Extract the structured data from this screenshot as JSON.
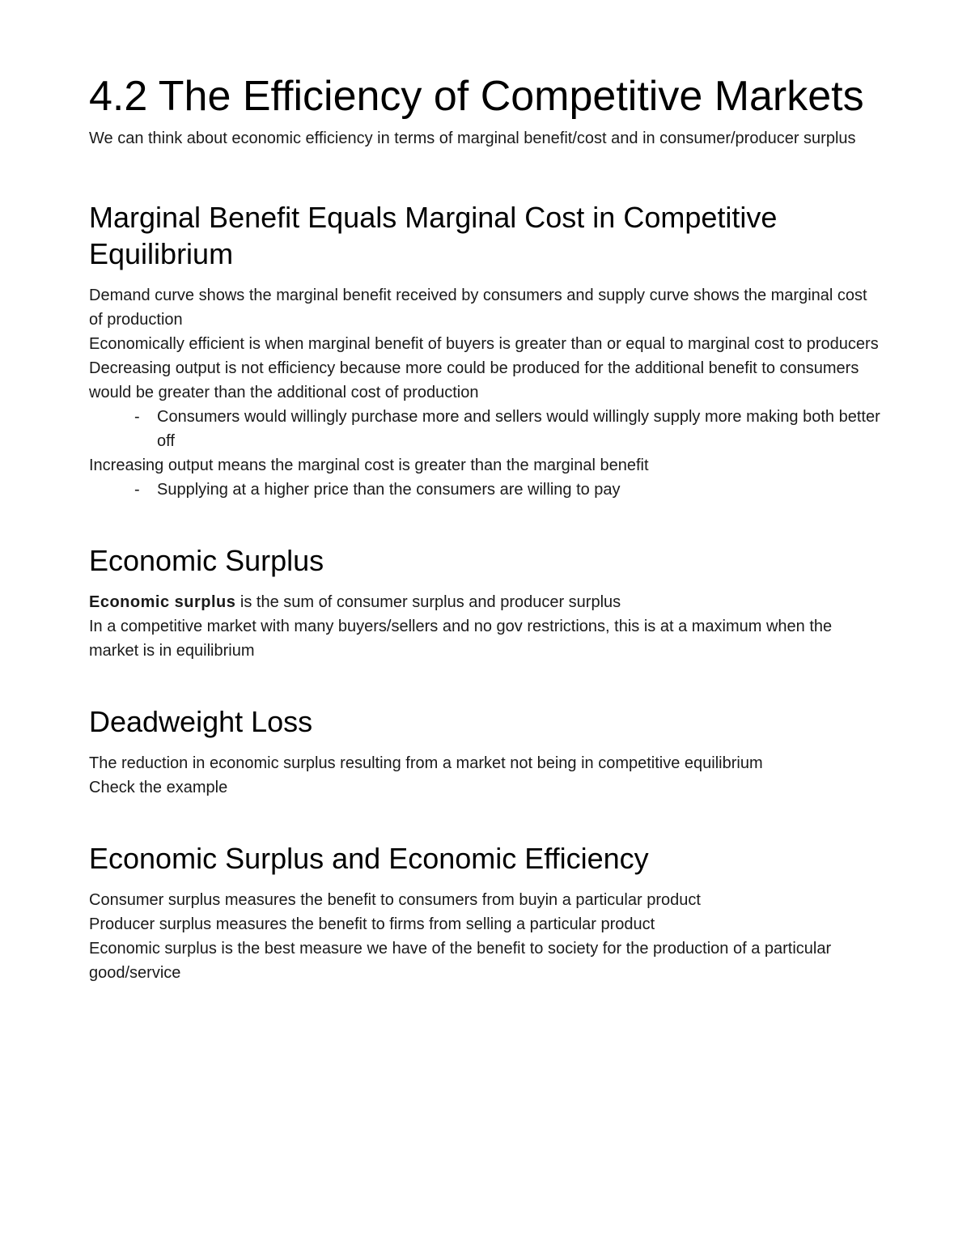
{
  "title": "4.2 The Efficiency of Competitive Markets",
  "intro": "We can think about economic efficiency in terms of marginal benefit/cost and in consumer/producer surplus",
  "sections": {
    "s1": {
      "heading": "Marginal Benefit Equals Marginal Cost in Competitive Equilibrium",
      "p1": "Demand curve shows the marginal benefit received by consumers and supply curve shows the marginal cost of production",
      "p2": "Economically efficient is when marginal benefit of buyers is greater than or equal to marginal cost to producers",
      "p3": "Decreasing output is not efficiency because more could be produced for the additional benefit to consumers would be greater than the additional cost of production",
      "b1": "Consumers would willingly purchase more and sellers would willingly supply more making both better off",
      "p4": "Increasing output means the marginal cost is greater than the marginal benefit",
      "b2": "Supplying at a higher price than the consumers are willing to pay"
    },
    "s2": {
      "heading": "Economic Surplus",
      "bold": "Economic surplus",
      "p1_rest": " is the sum of consumer surplus and producer surplus",
      "p2": "In a competitive market with many buyers/sellers and no gov restrictions, this is at a maximum when the market is in equilibrium"
    },
    "s3": {
      "heading": "Deadweight Loss",
      "p1": "The reduction in economic surplus resulting from a market not being in competitive equilibrium",
      "p2": "Check the example"
    },
    "s4": {
      "heading": "Economic Surplus and Economic Efficiency",
      "p1": " Consumer surplus measures the benefit to consumers from buyin a particular product",
      "p2": "Producer surplus measures the benefit to firms from selling a particular product",
      "p3": "Economic surplus is the best measure we have of the benefit to society for the production of a particular good/service"
    }
  }
}
